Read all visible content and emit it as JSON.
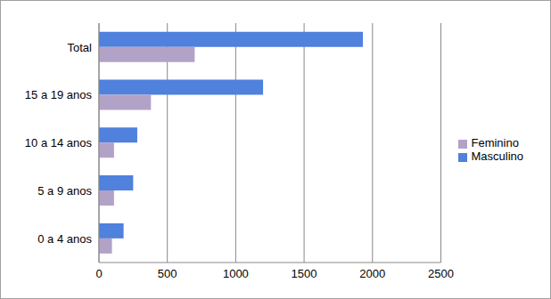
{
  "chart_data": {
    "type": "bar",
    "orientation": "horizontal",
    "categories": [
      "Total",
      "15 a 19 anos",
      "10 a 14 anos",
      "5 a 9 anos",
      "0 a 4 anos"
    ],
    "series": [
      {
        "name": "Masculino",
        "color": "#4f81dd",
        "values": [
          1930,
          1200,
          280,
          250,
          180
        ]
      },
      {
        "name": "Feminino",
        "color": "#b3a2c7",
        "values": [
          700,
          380,
          110,
          110,
          95
        ]
      }
    ],
    "xlim": [
      0,
      2500
    ],
    "xticks": [
      0,
      500,
      1000,
      1500,
      2000,
      2500
    ],
    "grid": true,
    "legend": "right"
  }
}
